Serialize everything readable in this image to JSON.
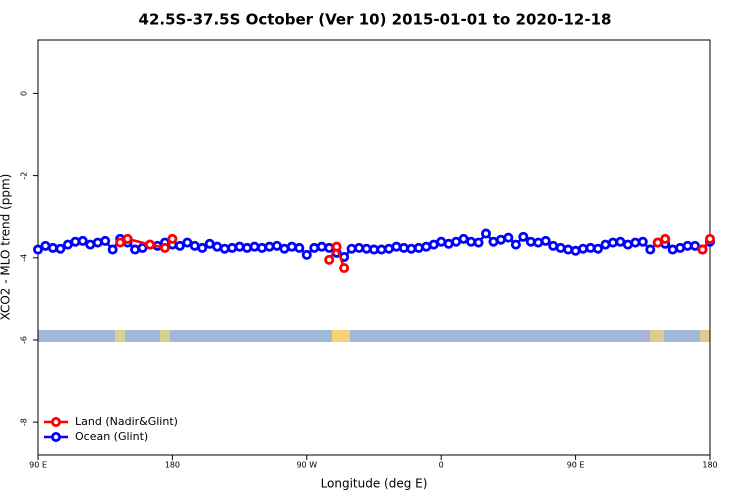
{
  "chart_data": {
    "type": "line",
    "title": "42.5S-37.5S October (Ver 10)   2015-01-01 to 2020-12-18",
    "x_label": "Longitude (deg E)",
    "y_label": "XCO2 - MLO trend (ppm)",
    "xlim": [
      90,
      540
    ],
    "xticks": [
      {
        "value": 90,
        "label": "90 E"
      },
      {
        "value": 180,
        "label": "180"
      },
      {
        "value": 270,
        "label": "90 W"
      },
      {
        "value": 360,
        "label": "0"
      },
      {
        "value": 450,
        "label": "90 E"
      },
      {
        "value": 540,
        "label": "180"
      }
    ],
    "ylim": [
      -8.8,
      1.3
    ],
    "yticks": [
      0,
      -2,
      -4,
      -6,
      -8
    ],
    "legend": "bottomleft",
    "series": [
      {
        "name": "Ocean (Glint)",
        "color": "#0000ff",
        "x": [
          90,
          95,
          100,
          105,
          110,
          115,
          120,
          125,
          130,
          135,
          140,
          145,
          150,
          155,
          160,
          165,
          170,
          175,
          180,
          185,
          190,
          195,
          200,
          205,
          210,
          215,
          220,
          225,
          230,
          235,
          240,
          245,
          250,
          255,
          260,
          265,
          270,
          275,
          280,
          285,
          290,
          295,
          300,
          305,
          310,
          315,
          320,
          325,
          330,
          335,
          340,
          345,
          350,
          355,
          360,
          365,
          370,
          375,
          380,
          385,
          390,
          395,
          400,
          405,
          410,
          415,
          420,
          425,
          430,
          435,
          440,
          445,
          450,
          455,
          460,
          465,
          470,
          475,
          480,
          485,
          490,
          495,
          500,
          505,
          510,
          515,
          520,
          525,
          530,
          535,
          540
        ],
        "values": [
          -3.8,
          -3.71,
          -3.76,
          -3.78,
          -3.68,
          -3.61,
          -3.59,
          -3.68,
          -3.63,
          -3.59,
          -3.8,
          -3.54,
          -3.63,
          -3.8,
          -3.76,
          -3.68,
          -3.71,
          -3.63,
          -3.68,
          -3.71,
          -3.63,
          -3.71,
          -3.76,
          -3.66,
          -3.73,
          -3.78,
          -3.76,
          -3.73,
          -3.76,
          -3.73,
          -3.76,
          -3.73,
          -3.71,
          -3.78,
          -3.73,
          -3.76,
          -3.93,
          -3.76,
          -3.73,
          -3.76,
          -3.88,
          -3.98,
          -3.78,
          -3.76,
          -3.78,
          -3.8,
          -3.8,
          -3.78,
          -3.73,
          -3.76,
          -3.78,
          -3.76,
          -3.73,
          -3.68,
          -3.61,
          -3.66,
          -3.61,
          -3.54,
          -3.61,
          -3.63,
          -3.41,
          -3.61,
          -3.56,
          -3.51,
          -3.68,
          -3.49,
          -3.61,
          -3.63,
          -3.59,
          -3.71,
          -3.76,
          -3.8,
          -3.83,
          -3.78,
          -3.76,
          -3.78,
          -3.68,
          -3.63,
          -3.61,
          -3.68,
          -3.63,
          -3.61,
          -3.8,
          -3.63,
          -3.66,
          -3.8,
          -3.76,
          -3.71,
          -3.71,
          -3.8,
          -3.61
        ]
      },
      {
        "name": "Land (Nadir&Glint)",
        "color": "#ff0000",
        "x": [
          145,
          150,
          165,
          175,
          180,
          null,
          285,
          290,
          295,
          null,
          505,
          510,
          null,
          535,
          540
        ],
        "values": [
          -3.63,
          -3.54,
          -3.68,
          -3.76,
          -3.54,
          null,
          -4.05,
          -3.73,
          -4.25,
          null,
          -3.63,
          -3.54,
          null,
          -3.8,
          -3.54
        ]
      }
    ]
  }
}
